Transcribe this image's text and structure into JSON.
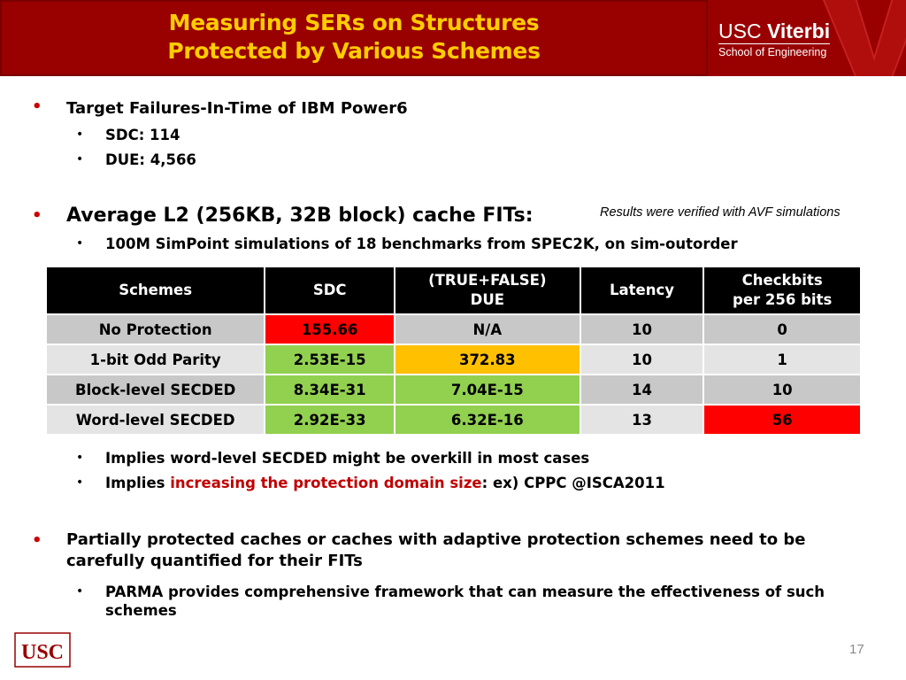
{
  "header": {
    "title_line1": "Measuring SERs on Structures",
    "title_line2": "Protected by Various Schemes",
    "logo_usc": "USC",
    "logo_viterbi": "Viterbi",
    "logo_school": "School of Engineering"
  },
  "bullets": {
    "b1": "Target Failures-In-Time of IBM Power6",
    "b1_sub1": "SDC: 114",
    "b1_sub2": "DUE: 4,566",
    "b2": "Average L2 (256KB, 32B block) cache FITs:",
    "b2_note": "Results were verified with AVF simulations",
    "b2_sub1": "100M SimPoint simulations of 18 benchmarks from SPEC2K, on sim-outorder",
    "b2_sub2": "Implies word-level SECDED might be overkill in most cases",
    "b2_sub3_pre": "Implies ",
    "b2_sub3_red": "increasing the protection domain size",
    "b2_sub3_post": ": ex) CPPC @ISCA2011",
    "b3": "Partially protected caches or caches with adaptive protection schemes need to be carefully quantified for their FITs",
    "b3_sub1": "PARMA provides comprehensive framework that can measure the effectiveness of such schemes"
  },
  "table": {
    "headers": {
      "schemes": "Schemes",
      "sdc": "SDC",
      "due_line1": "(TRUE+FALSE)",
      "due_line2": "DUE",
      "latency": "Latency",
      "checkbits_line1": "Checkbits",
      "checkbits_line2": "per 256 bits"
    },
    "rows": [
      {
        "scheme": "No Protection",
        "sdc": "155.66",
        "due": "N/A",
        "latency": "10",
        "checkbits": "0"
      },
      {
        "scheme": "1-bit Odd Parity",
        "sdc": "2.53E-15",
        "due": "372.83",
        "latency": "10",
        "checkbits": "1"
      },
      {
        "scheme": "Block-level SECDED",
        "sdc": "8.34E-31",
        "due": "7.04E-15",
        "latency": "14",
        "checkbits": "10"
      },
      {
        "scheme": "Word-level SECDED",
        "sdc": "2.92E-33",
        "due": "6.32E-16",
        "latency": "13",
        "checkbits": "56"
      }
    ]
  },
  "footer": {
    "logo_text": "USC",
    "page_number": "17"
  },
  "colors": {
    "header_bg": "#990000",
    "title": "#ffcc00",
    "highlight_red": "#ff0000",
    "highlight_green": "#92d050",
    "highlight_amber": "#ffc000"
  }
}
